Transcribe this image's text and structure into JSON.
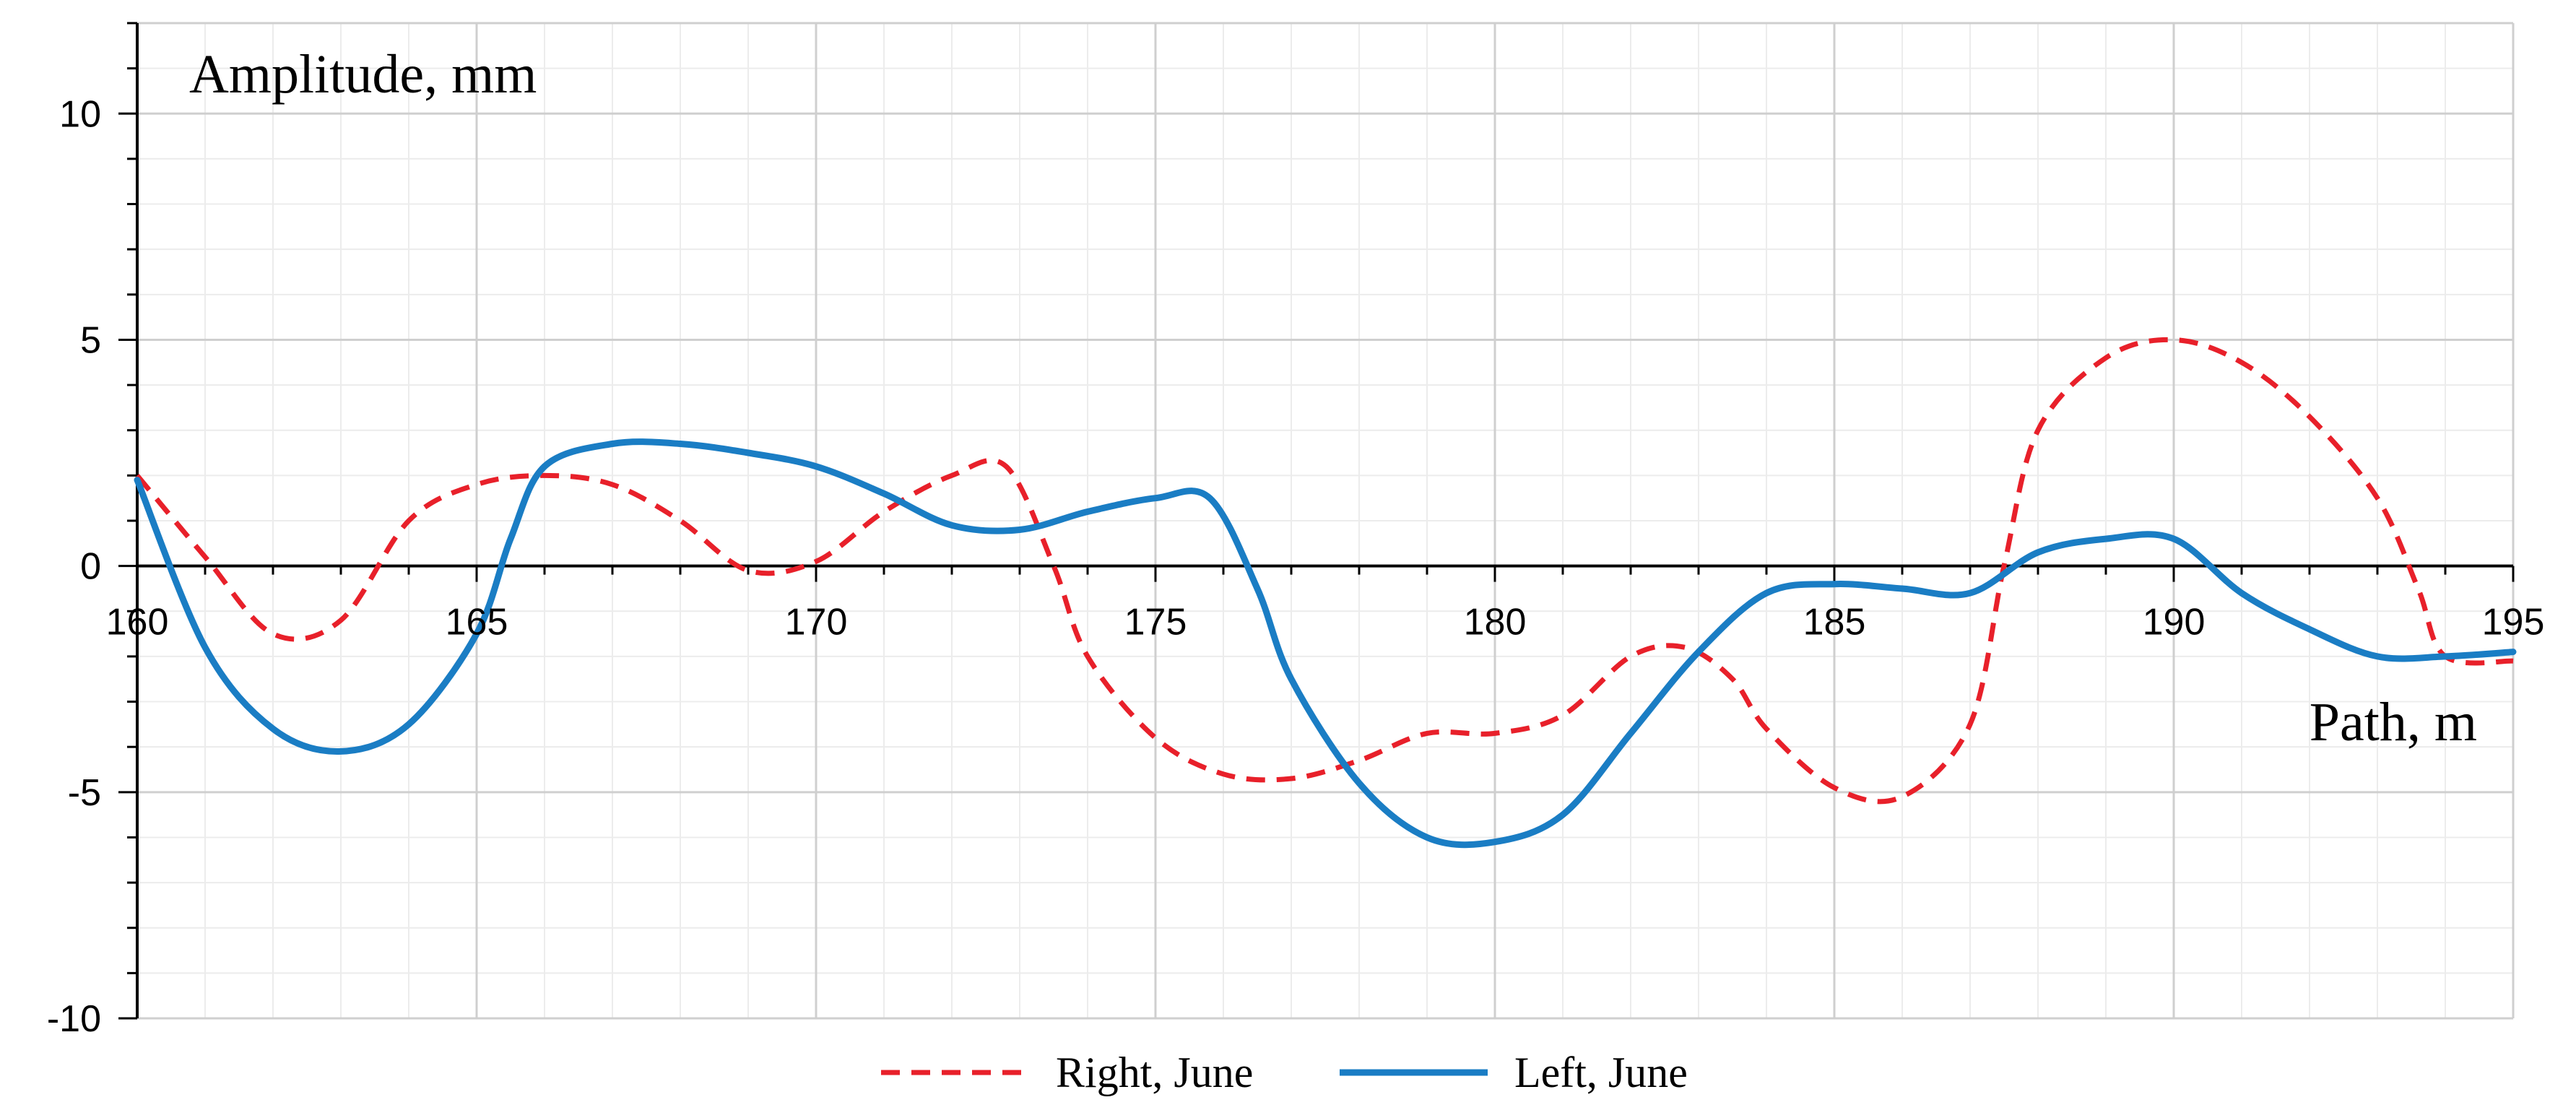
{
  "chart_data": {
    "type": "line",
    "title": "",
    "ylabel": "Amplitude, mm",
    "xlabel": "Path, m",
    "xlim": [
      160,
      195
    ],
    "ylim": [
      -10,
      12
    ],
    "xticks": [
      160,
      165,
      170,
      175,
      180,
      185,
      190,
      195
    ],
    "yticks": [
      -10,
      -5,
      0,
      5,
      10
    ],
    "x_minor_step": 1,
    "y_minor_step": 1,
    "grid": true,
    "legend_position": "bottom",
    "series": [
      {
        "name": "Right, June",
        "color": "#e8202a",
        "style": "dashed",
        "x": [
          160,
          161,
          162,
          163,
          164,
          165,
          166,
          167,
          168,
          169,
          170,
          171,
          172,
          172.8,
          173.5,
          174,
          175,
          176,
          177,
          178,
          179,
          180,
          181,
          182,
          182.8,
          183.5,
          184,
          185,
          186,
          187,
          187.5,
          188,
          189,
          190,
          191,
          192,
          193,
          193.6,
          194,
          195
        ],
        "y": [
          2.0,
          0.2,
          -1.5,
          -1.2,
          1.0,
          1.8,
          2.0,
          1.8,
          1.0,
          -0.1,
          0.1,
          1.2,
          2.0,
          2.2,
          0.0,
          -2.0,
          -3.8,
          -4.6,
          -4.7,
          -4.3,
          -3.7,
          -3.7,
          -3.3,
          -2.0,
          -1.8,
          -2.5,
          -3.6,
          -4.9,
          -5.1,
          -3.5,
          0.0,
          3.0,
          4.6,
          5.0,
          4.5,
          3.3,
          1.5,
          -0.5,
          -2.0,
          -2.1
        ]
      },
      {
        "name": "Left, June",
        "color": "#1a7dc4",
        "style": "solid",
        "x": [
          160,
          161,
          162,
          163,
          164,
          165,
          165.5,
          166,
          167,
          168,
          169,
          170,
          171,
          172,
          173,
          174,
          175,
          175.8,
          176.5,
          177,
          178,
          179,
          180,
          181,
          182,
          183,
          184,
          185,
          186,
          187,
          188,
          189,
          190,
          191,
          192,
          193,
          194,
          195
        ],
        "y": [
          1.9,
          -1.8,
          -3.6,
          -4.1,
          -3.5,
          -1.5,
          0.6,
          2.2,
          2.7,
          2.7,
          2.5,
          2.2,
          1.6,
          0.9,
          0.8,
          1.2,
          1.5,
          1.5,
          -0.5,
          -2.5,
          -4.8,
          -6.0,
          -6.1,
          -5.5,
          -3.7,
          -1.9,
          -0.6,
          -0.4,
          -0.5,
          -0.6,
          0.3,
          0.6,
          0.6,
          -0.6,
          -1.4,
          -2.0,
          -2.0,
          -1.9
        ]
      }
    ]
  }
}
